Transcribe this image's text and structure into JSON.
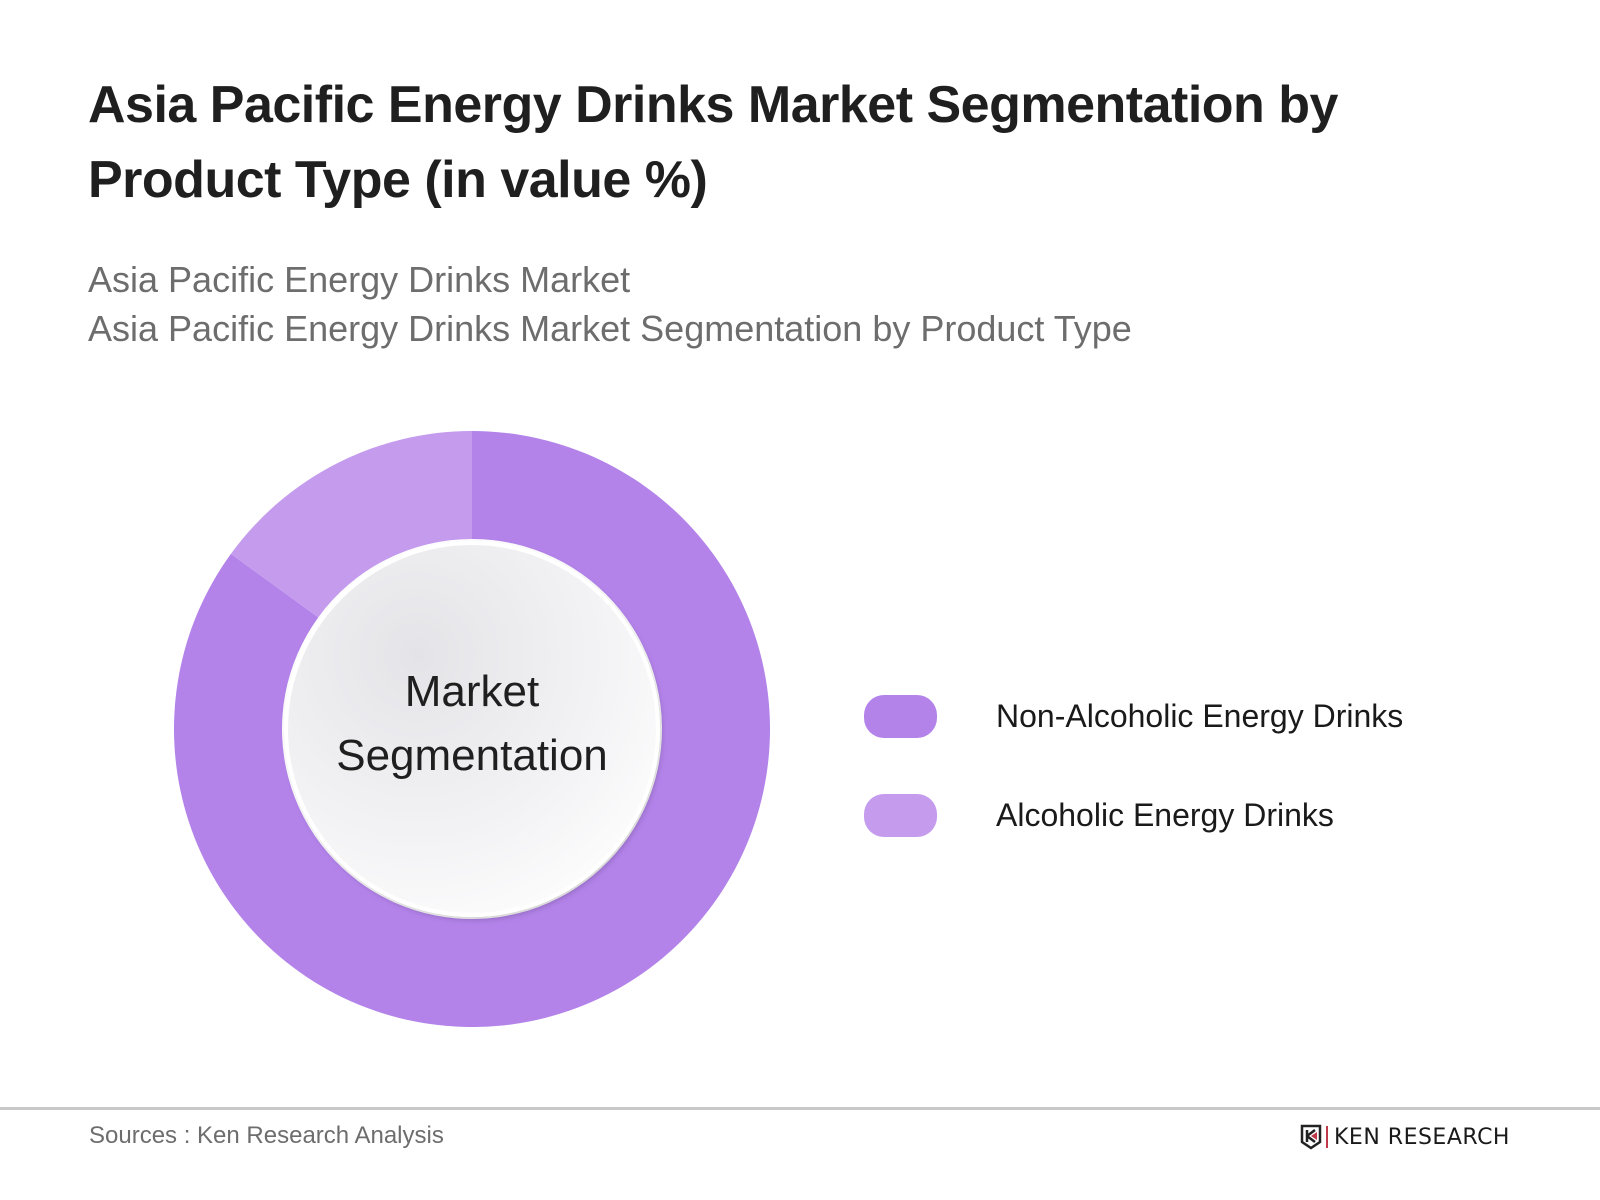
{
  "header": {
    "title": "Asia Pacific Energy Drinks Market Segmentation by Product Type (in value %)",
    "subtitle_line1": "Asia Pacific Energy Drinks Market",
    "subtitle_line2": "Asia Pacific Energy Drinks Market Segmentation by Product Type"
  },
  "center_label": {
    "line1": "Market",
    "line2": "Segmentation"
  },
  "legend": [
    {
      "label": "Non-Alcoholic Energy Drinks",
      "color": "#B383EA"
    },
    {
      "label": "Alcoholic Energy Drinks",
      "color": "#C59BEE"
    }
  ],
  "footer": {
    "source": "Sources : Ken Research Analysis",
    "brand": "KEN RESEARCH"
  },
  "chart_data": {
    "type": "pie",
    "subtype": "donut",
    "title": "Asia Pacific Energy Drinks Market Segmentation by Product Type (in value %)",
    "subtitle": "Asia Pacific Energy Drinks Market / Asia Pacific Energy Drinks Market Segmentation by Product Type",
    "categories": [
      "Non-Alcoholic Energy Drinks",
      "Alcoholic Energy Drinks"
    ],
    "values": [
      85,
      15
    ],
    "colors": [
      "#B383EA",
      "#C59BEE"
    ],
    "center_text": "Market Segmentation",
    "legend_position": "right",
    "data_labels": false
  }
}
